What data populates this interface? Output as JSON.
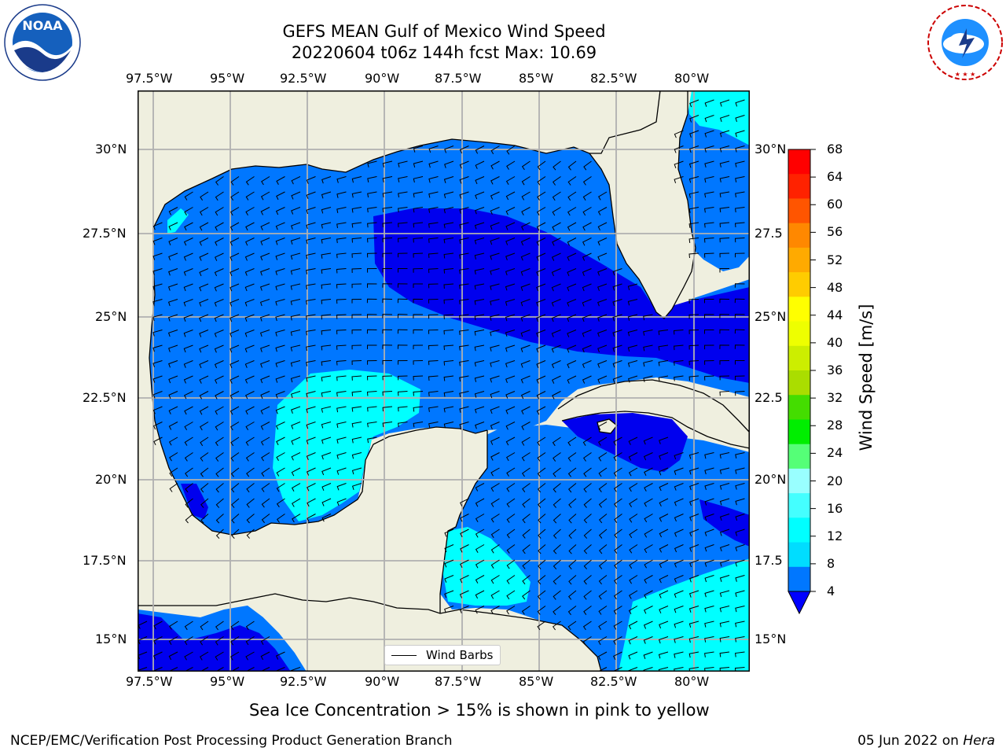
{
  "title": {
    "line1": "GEFS MEAN Gulf of Mexico Wind Speed",
    "line2": "20220604 t06z 144h fcst   Max: 10.69"
  },
  "logos": {
    "left": "noaa-logo",
    "right": "nws-logo",
    "noaa_text": "NOAA",
    "noaa_ring": "NATIONAL OCEANIC AND ATMOSPHERIC ADMINISTRATION • U.S. DEPARTMENT OF COMMERCE",
    "nws_ring": "NATIONAL WEATHER SERVICE"
  },
  "lon_labels": [
    "97.5°W",
    "95°W",
    "92.5°W",
    "90°W",
    "87.5°W",
    "85°W",
    "82.5°W",
    "80°W"
  ],
  "lat_labels_left": [
    "30°N",
    "27.5°N",
    "25°N",
    "22.5°N",
    "20°N",
    "17.5°N",
    "15°N"
  ],
  "lat_labels_right": [
    "30°N",
    "27.5",
    "25°N",
    "22.5",
    "20°N",
    "17.5",
    "15°N"
  ],
  "legend": {
    "label": "Wind Barbs"
  },
  "colorbar": {
    "label": "Wind Speed [m/s]",
    "ticks": [
      "4",
      "8",
      "12",
      "16",
      "20",
      "24",
      "28",
      "32",
      "36",
      "40",
      "44",
      "48",
      "52",
      "56",
      "60",
      "64",
      "68"
    ],
    "colors": [
      "#0077ff",
      "#00ddff",
      "#00ffff",
      "#44ffff",
      "#99ffff",
      "#55ff77",
      "#00ee00",
      "#44dd00",
      "#aadd00",
      "#ccee00",
      "#eeff00",
      "#ffff00",
      "#ffcc00",
      "#ffaa00",
      "#ff8800",
      "#ff5500",
      "#ff2200",
      "#ff0000"
    ],
    "under_color": "#0000ff"
  },
  "colors": {
    "land": "#efefdf",
    "speed_0_4": "#0000ee",
    "speed_4_8": "#0077ff",
    "speed_8_12": "#00ffff"
  },
  "note": "Sea Ice Concentration > 15% is shown in pink to yellow",
  "footer": {
    "left": "NCEP/EMC/Verification Post Processing Product Generation Branch",
    "right_date": "05 Jun 2022 on ",
    "right_machine": "Hera"
  }
}
